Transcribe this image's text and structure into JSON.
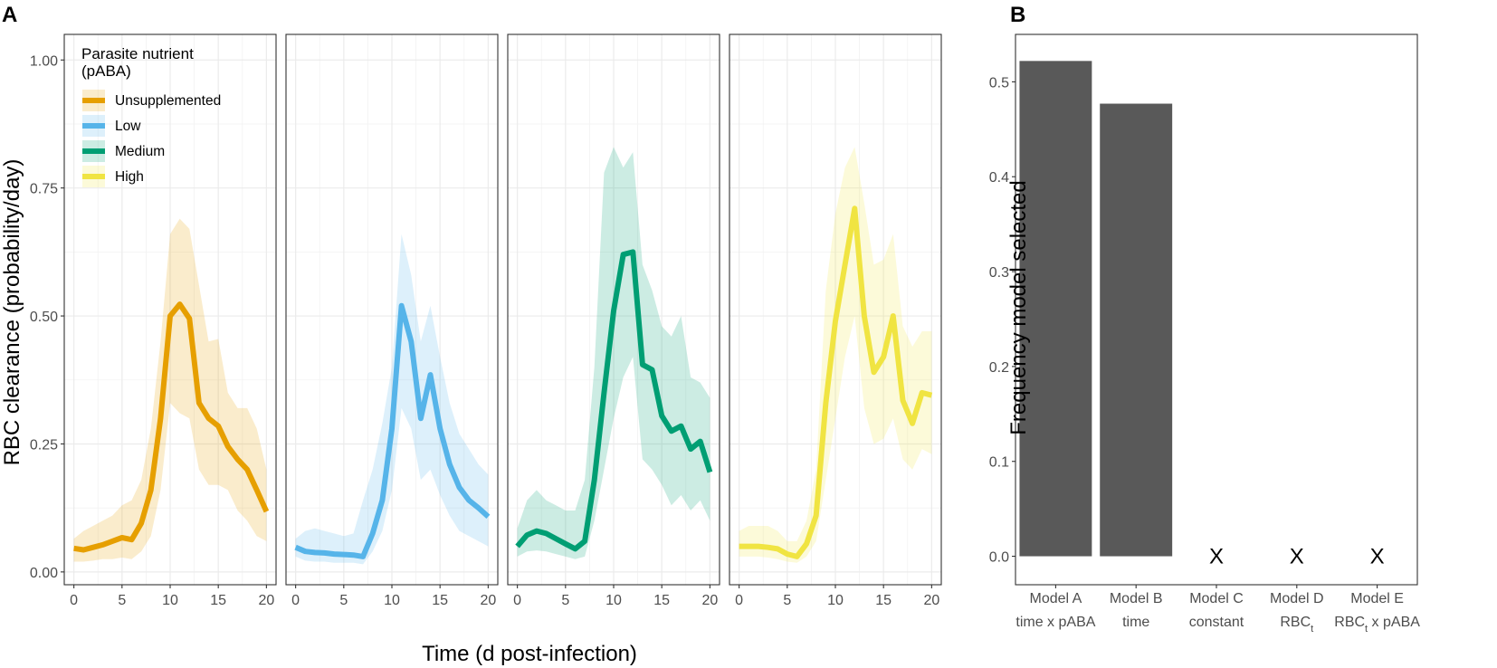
{
  "panel_labels": {
    "a": "A",
    "b": "B"
  },
  "chart_data": [
    {
      "type": "line",
      "title": "",
      "xlabel": "Time (d post-infection)",
      "ylabel": "RBC clearance (probability/day)",
      "xlim": [
        -1,
        21
      ],
      "ylim": [
        -0.025,
        1.05
      ],
      "x_ticks": [
        0,
        5,
        10,
        15,
        20
      ],
      "x_tick_labels": [
        "0",
        "5",
        "10",
        "15",
        "20"
      ],
      "y_ticks": [
        0,
        0.25,
        0.5,
        0.75,
        1.0
      ],
      "y_tick_labels": [
        "0.00",
        "0.25",
        "0.50",
        "0.75",
        "1.00"
      ],
      "grid": true,
      "legend": {
        "title_lines": [
          "Parasite nutrient",
          "(pABA)"
        ],
        "position": "top-left",
        "entries": [
          "Unsupplemented",
          "Low",
          "Medium",
          "High"
        ]
      },
      "x": [
        0,
        1,
        2,
        3,
        4,
        5,
        6,
        7,
        8,
        9,
        10,
        11,
        12,
        13,
        14,
        15,
        16,
        17,
        18,
        19,
        20
      ],
      "series": [
        {
          "name": "Unsupplemented",
          "color": "#E69F00",
          "values": [
            0.046,
            0.043,
            0.048,
            0.053,
            0.06,
            0.067,
            0.063,
            0.095,
            0.16,
            0.3,
            0.5,
            0.523,
            0.495,
            0.33,
            0.3,
            0.285,
            0.245,
            0.22,
            0.2,
            0.16,
            0.118
          ],
          "lower": [
            0.02,
            0.02,
            0.022,
            0.025,
            0.025,
            0.028,
            0.025,
            0.04,
            0.07,
            0.16,
            0.33,
            0.31,
            0.3,
            0.2,
            0.17,
            0.17,
            0.16,
            0.12,
            0.1,
            0.07,
            0.06
          ],
          "upper": [
            0.065,
            0.08,
            0.09,
            0.1,
            0.11,
            0.13,
            0.14,
            0.18,
            0.28,
            0.45,
            0.66,
            0.69,
            0.67,
            0.56,
            0.45,
            0.455,
            0.35,
            0.32,
            0.32,
            0.28,
            0.2
          ]
        },
        {
          "name": "Low",
          "color": "#56B4E9",
          "values": [
            0.048,
            0.04,
            0.038,
            0.037,
            0.035,
            0.034,
            0.033,
            0.03,
            0.075,
            0.14,
            0.28,
            0.52,
            0.45,
            0.3,
            0.385,
            0.28,
            0.21,
            0.165,
            0.14,
            0.125,
            0.108
          ],
          "lower": [
            0.03,
            0.022,
            0.02,
            0.02,
            0.018,
            0.018,
            0.018,
            0.015,
            0.04,
            0.08,
            0.16,
            0.32,
            0.28,
            0.18,
            0.2,
            0.15,
            0.11,
            0.08,
            0.07,
            0.06,
            0.05
          ],
          "upper": [
            0.065,
            0.08,
            0.085,
            0.08,
            0.075,
            0.07,
            0.075,
            0.14,
            0.2,
            0.29,
            0.4,
            0.66,
            0.58,
            0.45,
            0.52,
            0.42,
            0.33,
            0.27,
            0.24,
            0.21,
            0.19
          ]
        },
        {
          "name": "Medium",
          "color": "#009E73",
          "values": [
            0.05,
            0.072,
            0.08,
            0.075,
            0.065,
            0.055,
            0.045,
            0.06,
            0.18,
            0.35,
            0.51,
            0.62,
            0.625,
            0.405,
            0.395,
            0.305,
            0.275,
            0.285,
            0.24,
            0.255,
            0.195
          ],
          "lower": [
            0.03,
            0.04,
            0.042,
            0.04,
            0.035,
            0.03,
            0.025,
            0.03,
            0.1,
            0.2,
            0.3,
            0.38,
            0.42,
            0.22,
            0.2,
            0.17,
            0.13,
            0.15,
            0.12,
            0.14,
            0.1
          ],
          "upper": [
            0.085,
            0.14,
            0.16,
            0.14,
            0.13,
            0.12,
            0.12,
            0.18,
            0.4,
            0.78,
            0.83,
            0.79,
            0.82,
            0.6,
            0.55,
            0.48,
            0.46,
            0.5,
            0.38,
            0.37,
            0.34
          ]
        },
        {
          "name": "High",
          "color": "#F0E442",
          "values": [
            0.05,
            0.05,
            0.05,
            0.048,
            0.045,
            0.035,
            0.03,
            0.055,
            0.11,
            0.33,
            0.49,
            0.6,
            0.71,
            0.5,
            0.39,
            0.42,
            0.5,
            0.335,
            0.29,
            0.35,
            0.345
          ],
          "lower": [
            0.03,
            0.03,
            0.03,
            0.028,
            0.025,
            0.02,
            0.018,
            0.03,
            0.06,
            0.18,
            0.3,
            0.42,
            0.5,
            0.32,
            0.25,
            0.26,
            0.3,
            0.22,
            0.2,
            0.24,
            0.23
          ],
          "upper": [
            0.08,
            0.09,
            0.09,
            0.09,
            0.08,
            0.06,
            0.06,
            0.1,
            0.2,
            0.55,
            0.7,
            0.79,
            0.83,
            0.72,
            0.6,
            0.61,
            0.66,
            0.48,
            0.44,
            0.47,
            0.47
          ]
        }
      ]
    },
    {
      "type": "bar",
      "title": "",
      "xlabel": "",
      "ylabel": "Frequency model selected",
      "ylim": [
        -0.03,
        0.55
      ],
      "y_ticks": [
        0,
        0.1,
        0.2,
        0.3,
        0.4,
        0.5
      ],
      "y_tick_labels": [
        "0.0",
        "0.1",
        "0.2",
        "0.3",
        "0.4",
        "0.5"
      ],
      "grid": false,
      "categories": [
        "Model A",
        "Model B",
        "Model C",
        "Model D",
        "Model E"
      ],
      "subtitles": [
        "time x pABA",
        "time",
        "constant",
        "RBC",
        "RBC"
      ],
      "subscripts": [
        "",
        "",
        "",
        "t",
        "t"
      ],
      "subtitle_suffix": [
        "",
        "",
        "",
        "",
        " x pABA"
      ],
      "values": [
        0.522,
        0.477,
        0,
        0,
        0
      ],
      "zero_marker": "X",
      "bar_color": "#595959"
    }
  ]
}
